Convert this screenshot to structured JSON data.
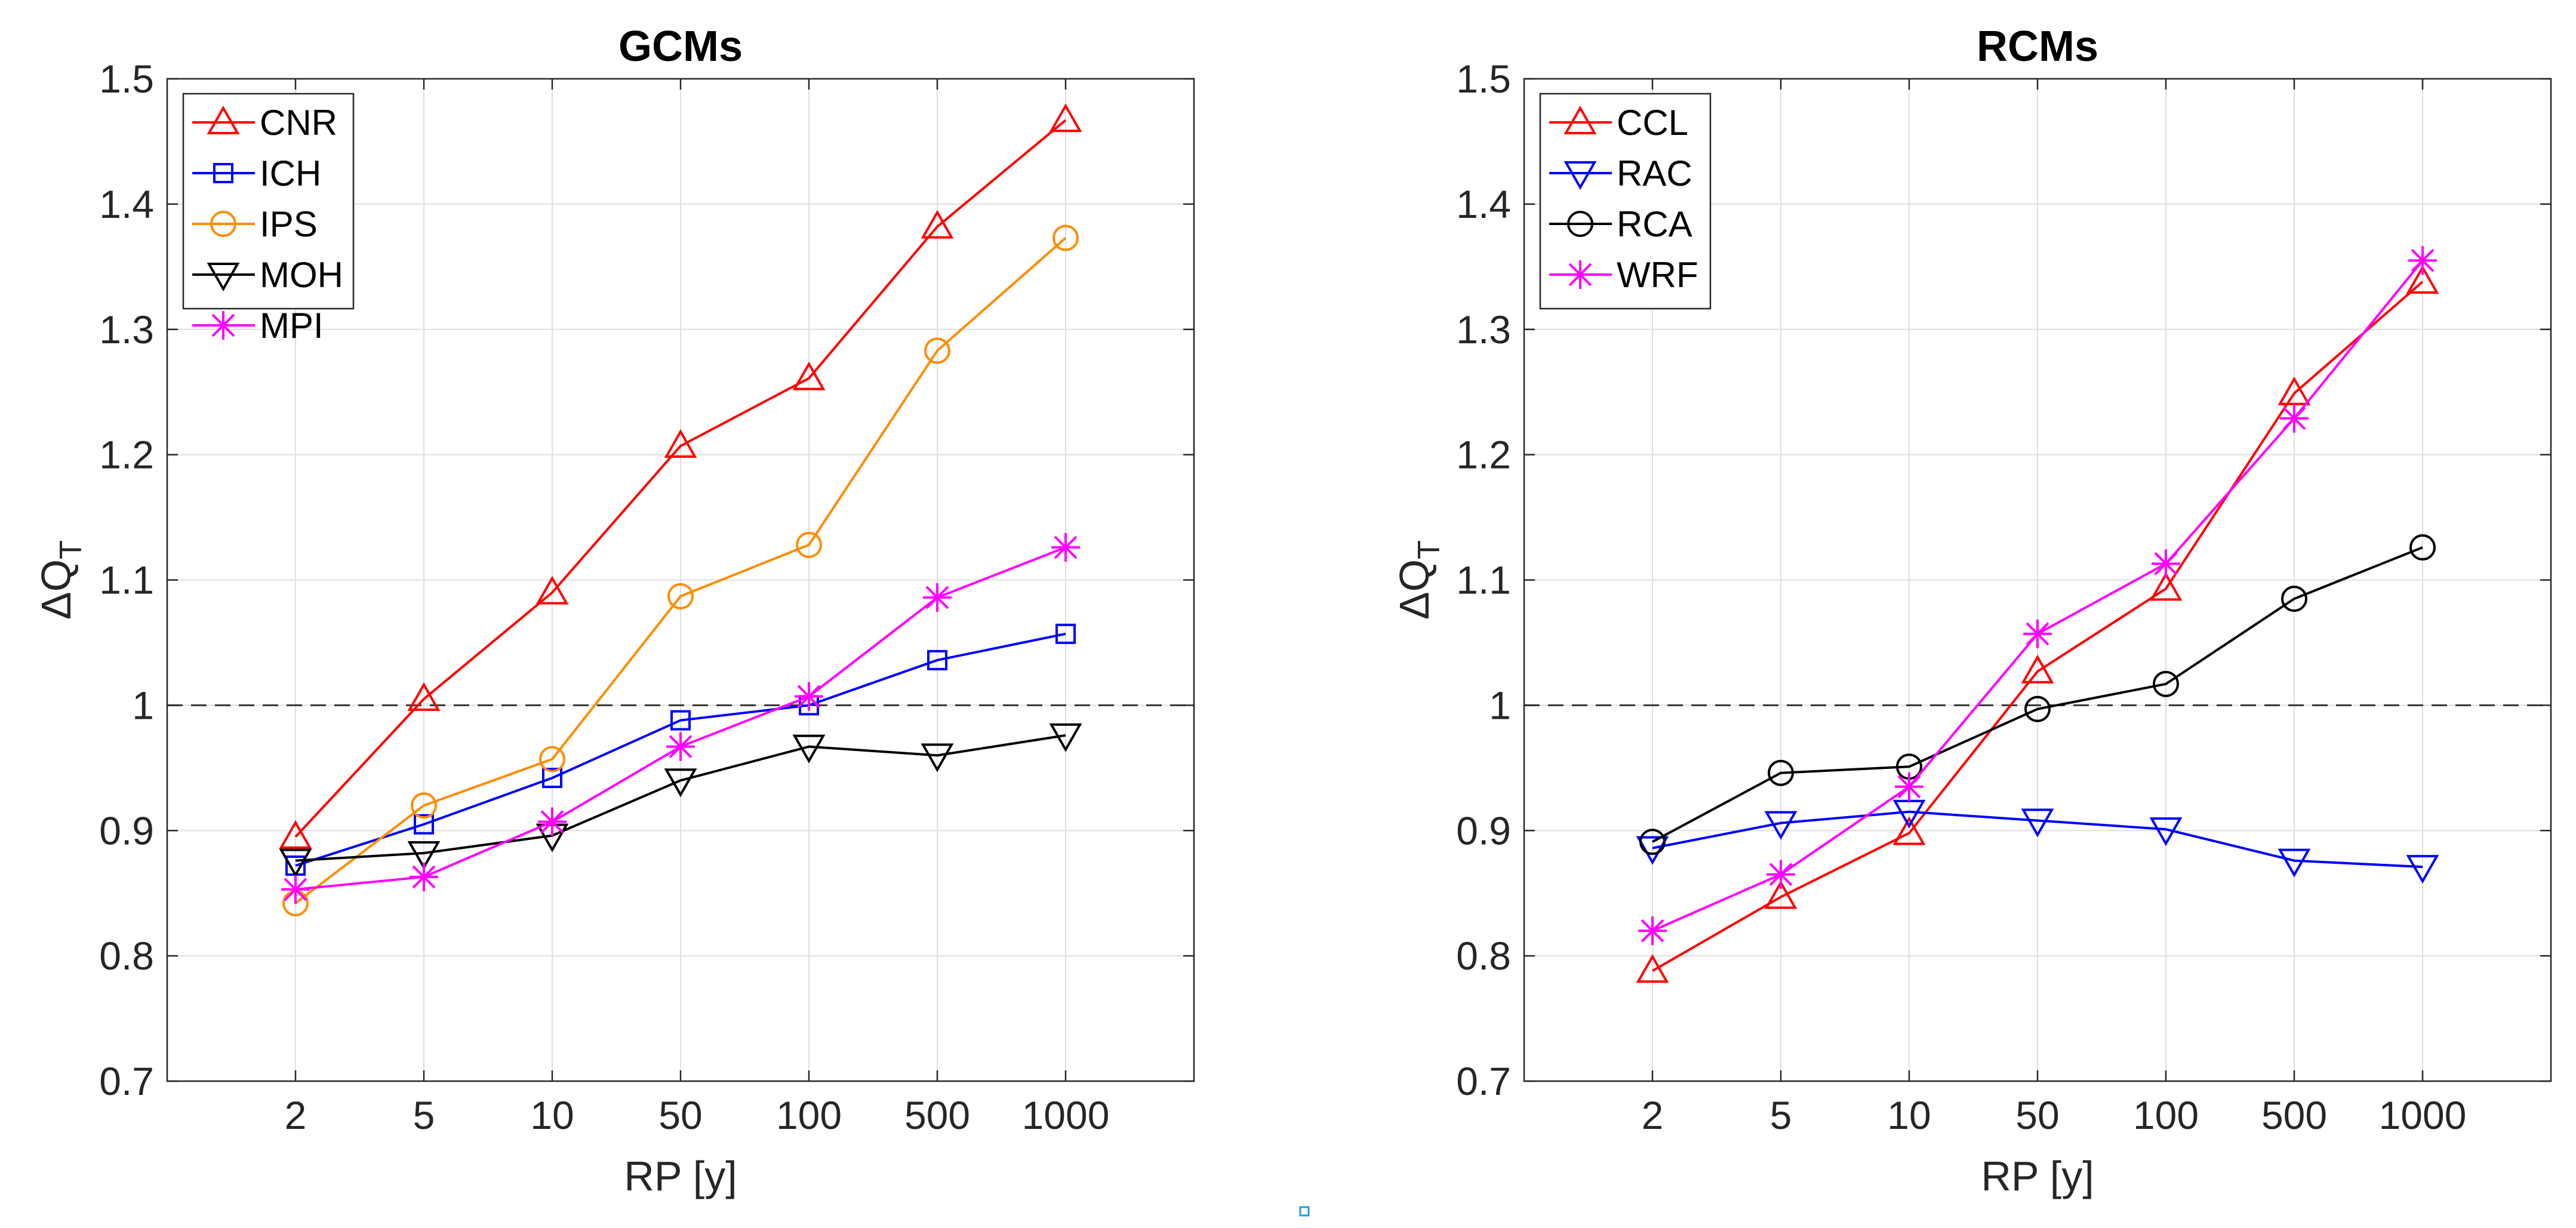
{
  "chart_data": [
    {
      "type": "line",
      "title": "GCMs",
      "xlabel": "RP [y]",
      "ylabel": "ΔQ",
      "ylabel_subscript": "T",
      "categories": [
        "2",
        "5",
        "10",
        "50",
        "100",
        "500",
        "1000"
      ],
      "ylim": [
        0.7,
        1.5
      ],
      "yticks": [
        "0.7",
        "0.8",
        "0.9",
        "1",
        "1.1",
        "1.2",
        "1.3",
        "1.4",
        "1.5"
      ],
      "grid": true,
      "reference_line": 1,
      "legend_position": "top-left",
      "series": [
        {
          "name": "CNR",
          "color": "#ff0000",
          "marker": "triangle-up",
          "values": [
            0.895,
            1.005,
            1.09,
            1.207,
            1.261,
            1.382,
            1.467
          ]
        },
        {
          "name": "ICH",
          "color": "#0000ff",
          "marker": "square",
          "values": [
            0.872,
            0.905,
            0.942,
            0.988,
            1.0,
            1.036,
            1.057
          ]
        },
        {
          "name": "IPS",
          "color": "#ff8c00",
          "marker": "circle",
          "values": [
            0.842,
            0.92,
            0.957,
            1.087,
            1.128,
            1.283,
            1.373
          ]
        },
        {
          "name": "MOH",
          "color": "#000000",
          "marker": "triangle-down",
          "values": [
            0.876,
            0.882,
            0.896,
            0.94,
            0.967,
            0.96,
            0.976
          ]
        },
        {
          "name": "MPI",
          "color": "#ff00ff",
          "marker": "star",
          "values": [
            0.853,
            0.863,
            0.907,
            0.967,
            1.007,
            1.086,
            1.126
          ]
        }
      ]
    },
    {
      "type": "line",
      "title": "RCMs",
      "xlabel": "RP [y]",
      "ylabel": "ΔQ",
      "ylabel_subscript": "T",
      "categories": [
        "2",
        "5",
        "10",
        "50",
        "100",
        "500",
        "1000"
      ],
      "ylim": [
        0.7,
        1.5
      ],
      "yticks": [
        "0.7",
        "0.8",
        "0.9",
        "1",
        "1.1",
        "1.2",
        "1.3",
        "1.4",
        "1.5"
      ],
      "grid": true,
      "reference_line": 1,
      "legend_position": "top-left",
      "series": [
        {
          "name": "CCL",
          "color": "#ff0000",
          "marker": "triangle-up",
          "values": [
            0.788,
            0.847,
            0.898,
            1.027,
            1.093,
            1.249,
            1.338
          ]
        },
        {
          "name": "RAC",
          "color": "#0000ff",
          "marker": "triangle-down",
          "values": [
            0.886,
            0.906,
            0.915,
            0.908,
            0.901,
            0.876,
            0.871
          ]
        },
        {
          "name": "RCA",
          "color": "#000000",
          "marker": "circle",
          "values": [
            0.891,
            0.946,
            0.951,
            0.997,
            1.017,
            1.085,
            1.126
          ]
        },
        {
          "name": "WRF",
          "color": "#ff00ff",
          "marker": "star",
          "values": [
            0.82,
            0.865,
            0.935,
            1.057,
            1.113,
            1.229,
            1.355
          ]
        }
      ]
    }
  ]
}
